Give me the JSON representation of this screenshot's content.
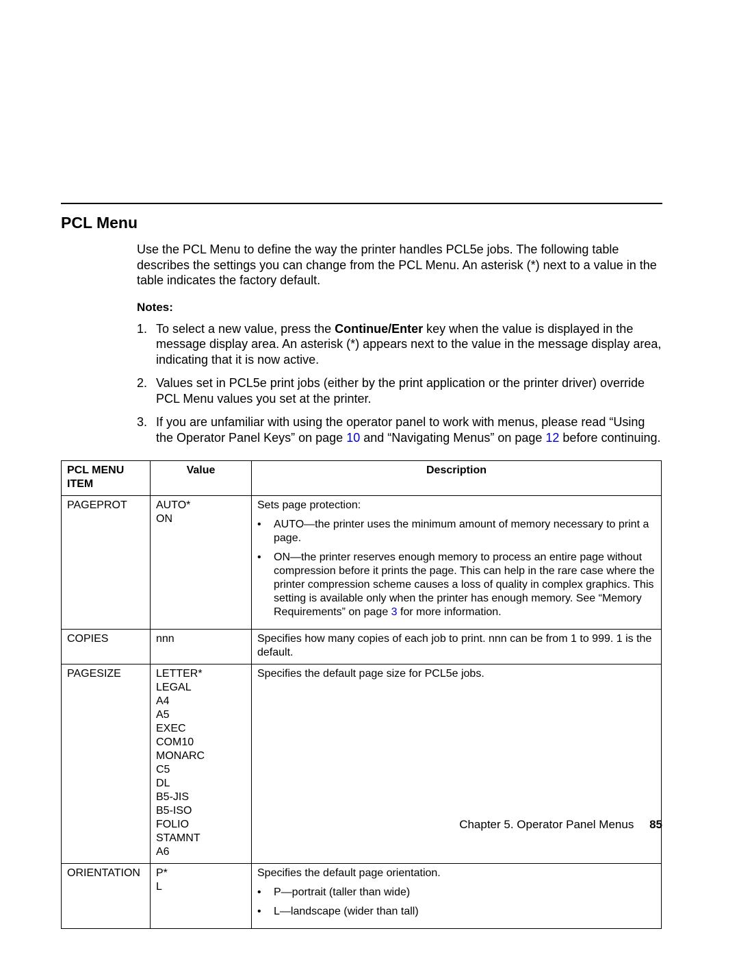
{
  "section": {
    "title": "PCL Menu",
    "intro": "Use the PCL Menu to define the way the printer handles PCL5e jobs.  The following table describes the settings you can change from the PCL Menu.  An asterisk (*) next to a value in the table indicates the factory default."
  },
  "notes": {
    "label": "Notes:",
    "items": [
      {
        "num": "1.",
        "pre": "To select a new value, press the ",
        "bold": "Continue/Enter",
        "post": " key when the value is displayed in the message display area.  An asterisk (*) appears next to the value in the message display area, indicating that it is now active."
      },
      {
        "num": "2.",
        "text": "Values set in PCL5e print jobs (either by the print application or the printer driver) override PCL Menu values you set at the printer."
      },
      {
        "num": "3.",
        "pre": "If you are unfamiliar with using the operator panel to work with menus, please read “Using the Operator Panel Keys” on page ",
        "ref1": "10",
        "mid": " and “Navigating Menus” on page ",
        "ref2": "12",
        "post": " before continuing."
      }
    ]
  },
  "table": {
    "headers": {
      "c1": "PCL MENU ITEM",
      "c2": "Value",
      "c3": "Description"
    },
    "rows": [
      {
        "item": "PAGEPROT",
        "value": [
          "AUTO*",
          "ON"
        ],
        "desc_intro": "Sets page protection:",
        "desc_bullets": [
          "AUTO—the printer uses the minimum amount of memory necessary to print a page.",
          {
            "pre": "ON—the printer reserves enough memory to process an entire page without compression before it prints the page. This can help in the rare case where the printer compression scheme causes a loss of quality in complex graphics.  This setting is available only when the printer has enough memory.  See “Memory Requirements” on page ",
            "ref": "3",
            "post": " for more information."
          }
        ]
      },
      {
        "item": "COPIES",
        "value": [
          "nnn"
        ],
        "desc_text": "Specifies how many copies of each job to print.  nnn can be from 1 to 999.  1 is the default."
      },
      {
        "item": "PAGESIZE",
        "value": [
          "LETTER*",
          "LEGAL",
          "A4",
          "A5",
          "EXEC",
          "COM10",
          "MONARC",
          "C5",
          "DL",
          "B5-JIS",
          "B5-ISO",
          "FOLIO",
          "STAMNT",
          "A6"
        ],
        "desc_text": "Specifies the default page size for PCL5e jobs."
      },
      {
        "item": "ORIENTATION",
        "value": [
          "P*",
          "L"
        ],
        "desc_intro": "Specifies the default page orientation.",
        "desc_bullets": [
          "P—portrait (taller than wide)",
          "L—landscape (wider than tall)"
        ]
      }
    ]
  },
  "footer": {
    "chapter": "Chapter 5.  Operator Panel Menus",
    "page": "85"
  }
}
